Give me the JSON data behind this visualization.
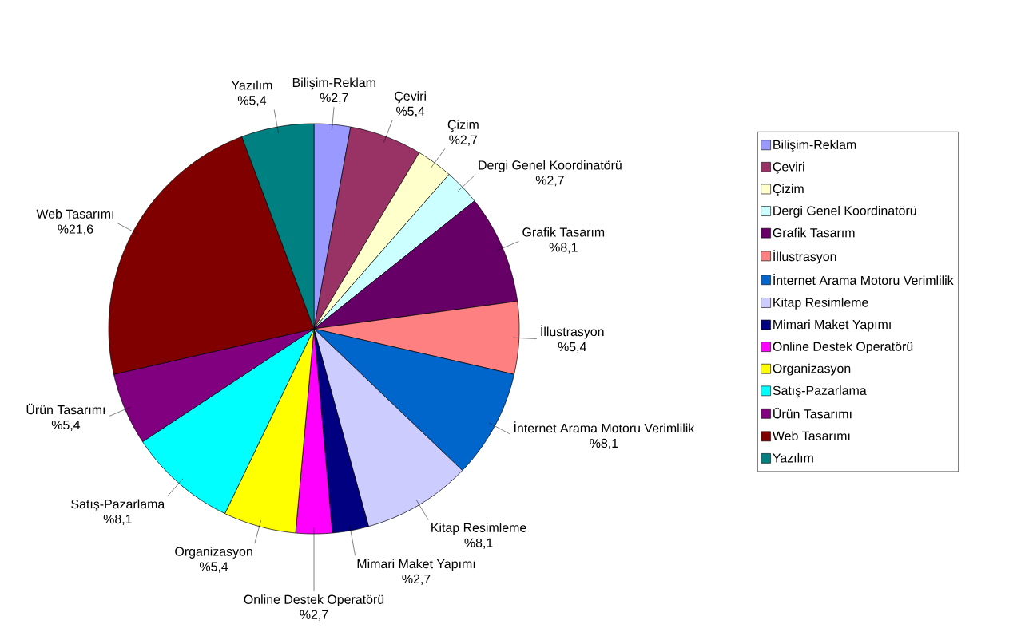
{
  "chart_data": {
    "type": "pie",
    "categories": [
      "Bilişim-Reklam",
      "Çeviri",
      "Çizim",
      "Dergi Genel Koordinatörü",
      "Grafik Tasarım",
      "İllustrasyon",
      "İnternet Arama Motoru Verimlilik",
      "Kitap Resimleme",
      "Mimari Maket Yapımı",
      "Online Destek Operatörü",
      "Organizasyon",
      "Satış-Pazarlama",
      "Ürün Tasarımı",
      "Web Tasarımı",
      "Yazılım"
    ],
    "values": [
      2.7,
      5.4,
      2.7,
      2.7,
      8.1,
      5.4,
      8.1,
      8.1,
      2.7,
      2.7,
      5.4,
      8.1,
      5.4,
      21.6,
      5.4
    ],
    "value_labels": [
      "%2,7",
      "%5,4",
      "%2,7",
      "%2,7",
      "%8,1",
      "%5,4",
      "%8,1",
      "%8,1",
      "%2,7",
      "%2,7",
      "%5,4",
      "%8,1",
      "%5,4",
      "%21,6",
      "%5,4"
    ],
    "colors": [
      "#9999ff",
      "#993366",
      "#ffffcc",
      "#ccffff",
      "#660066",
      "#ff8080",
      "#0066cc",
      "#ccccff",
      "#000080",
      "#ff00ff",
      "#ffff00",
      "#00ffff",
      "#800080",
      "#800000",
      "#008080"
    ],
    "legend": "right"
  }
}
